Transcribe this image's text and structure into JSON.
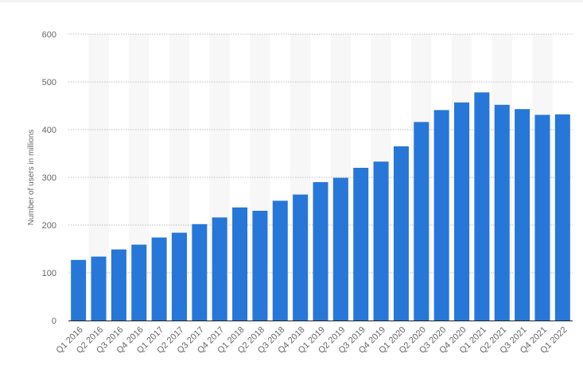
{
  "chart_data": {
    "type": "bar",
    "title": "",
    "xlabel": "",
    "ylabel": "Number of users in millions",
    "ylim": [
      0,
      600
    ],
    "yticks": [
      0,
      100,
      200,
      300,
      400,
      500,
      600
    ],
    "grid": true,
    "legend": "none",
    "colors": {
      "bar": "#2677d8",
      "band": "#f7f7f7",
      "grid": "#bfbfbf",
      "axis": "#222222",
      "text": "#666666"
    },
    "categories": [
      "Q1 2016",
      "Q2 2016",
      "Q3 2016",
      "Q4 2016",
      "Q1 2017",
      "Q2 2017",
      "Q3 2017",
      "Q4 2017",
      "Q1 2018",
      "Q2 2018",
      "Q3 2018",
      "Q4 2018",
      "Q1 2019",
      "Q2 2019",
      "Q3 2019",
      "Q4 2019",
      "Q1 2020",
      "Q2 2020",
      "Q3 2020",
      "Q4 2020",
      "Q1 2021",
      "Q2 2021",
      "Q3 2021",
      "Q4 2021",
      "Q1 2022"
    ],
    "values": [
      127,
      134,
      149,
      159,
      174,
      184,
      202,
      216,
      237,
      230,
      251,
      264,
      290,
      299,
      320,
      333,
      365,
      416,
      441,
      457,
      478,
      452,
      443,
      431,
      432
    ]
  }
}
